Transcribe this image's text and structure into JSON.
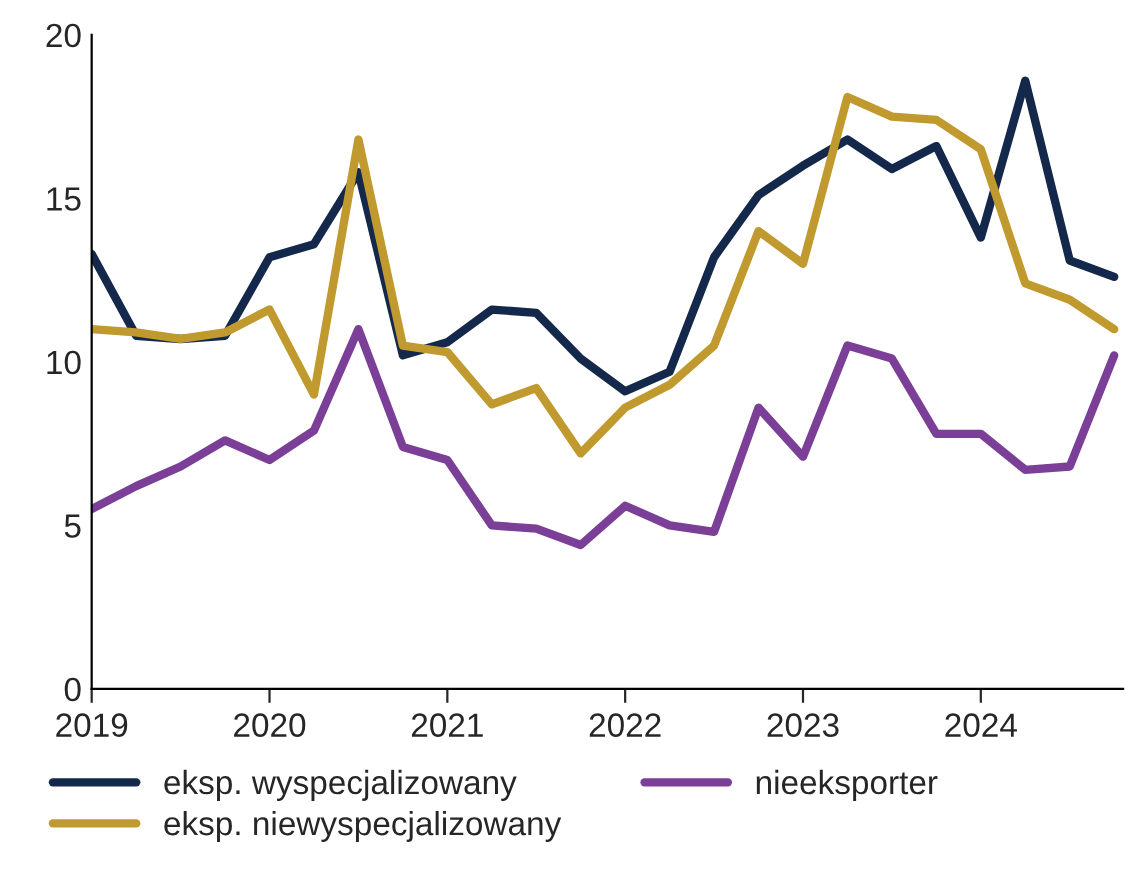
{
  "chart_data": {
    "type": "line",
    "x": [
      2019,
      2019.25,
      2019.5,
      2019.75,
      2020,
      2020.25,
      2020.5,
      2020.75,
      2021,
      2021.25,
      2021.5,
      2021.75,
      2022,
      2022.25,
      2022.5,
      2022.75,
      2023,
      2023.25,
      2023.5,
      2023.75,
      2024,
      2024.25,
      2024.5,
      2024.75
    ],
    "series": [
      {
        "name": "eksp. wyspecjalizowany",
        "color": "#14284b",
        "values": [
          13.3,
          10.8,
          10.7,
          10.8,
          13.2,
          13.6,
          15.8,
          10.2,
          10.6,
          11.6,
          11.5,
          10.1,
          9.1,
          9.7,
          13.2,
          15.1,
          16.0,
          16.8,
          15.9,
          16.6,
          13.8,
          18.6,
          13.1,
          12.6
        ]
      },
      {
        "name": "eksp. niewyspecjalizowany",
        "color": "#c09a2e",
        "values": [
          11.0,
          10.9,
          10.7,
          10.9,
          11.6,
          9.0,
          16.8,
          10.5,
          10.3,
          8.7,
          9.2,
          7.2,
          8.6,
          9.3,
          10.5,
          14.0,
          13.0,
          18.1,
          17.5,
          17.4,
          16.5,
          12.4,
          11.9,
          11.0
        ]
      },
      {
        "name": "nieeksporter",
        "color": "#7b3f98",
        "values": [
          5.5,
          6.2,
          6.8,
          7.6,
          7.0,
          7.9,
          11.0,
          7.4,
          7.0,
          5.0,
          4.9,
          4.4,
          5.6,
          5.0,
          4.8,
          8.6,
          7.1,
          10.5,
          10.1,
          7.8,
          7.8,
          6.7,
          6.8,
          10.2
        ]
      }
    ],
    "xlim": [
      2019,
      2024.8
    ],
    "xticks": [
      2019,
      2020,
      2021,
      2022,
      2023,
      2024
    ],
    "ylim": [
      0,
      20
    ],
    "yticks": [
      0,
      5,
      10,
      15,
      20
    ],
    "grid": false,
    "legend": "bottom",
    "marker": "none",
    "line_style": "solid"
  }
}
